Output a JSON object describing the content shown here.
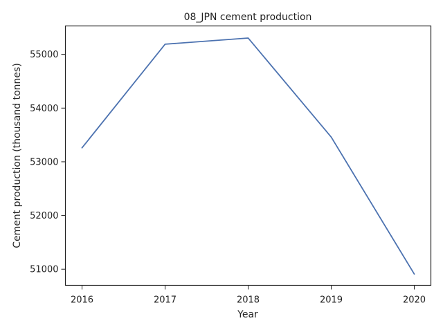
{
  "chart_data": {
    "type": "line",
    "title": "08_JPN cement production",
    "xlabel": "Year",
    "ylabel": "Cement production (thousand tonnes)",
    "x": [
      2016,
      2017,
      2018,
      2019,
      2020
    ],
    "x_ticks": [
      "2016",
      "2017",
      "2018",
      "2019",
      "2020"
    ],
    "y_ticks": [
      "51000",
      "52000",
      "53000",
      "54000",
      "55000"
    ],
    "xlim": [
      2015.8,
      2020.2
    ],
    "ylim": [
      50700,
      55530
    ],
    "series": [
      {
        "values": [
          53260,
          55190,
          55305,
          53460,
          50910
        ],
        "color": "#4c72b0"
      }
    ],
    "grid": false,
    "legend": "none"
  }
}
